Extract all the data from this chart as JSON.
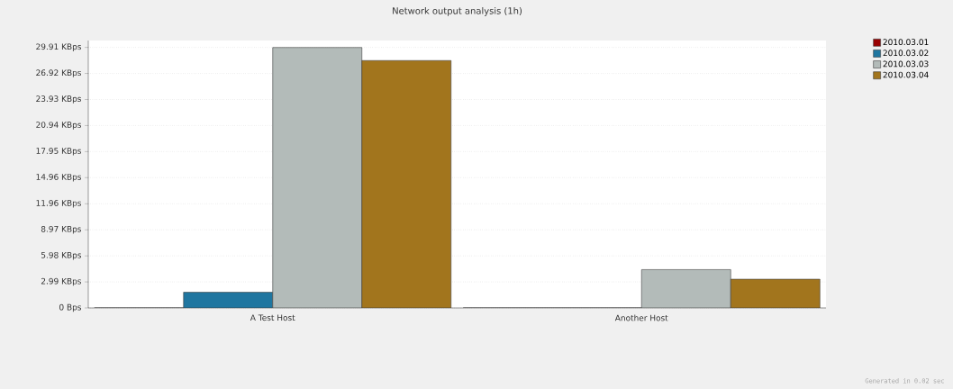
{
  "chart_data": {
    "type": "bar",
    "title": "Network output analysis  (1h)",
    "categories": [
      "A Test Host",
      "Another Host"
    ],
    "series": [
      {
        "name": "2010.03.01",
        "color": "#990000",
        "values": [
          0,
          0
        ]
      },
      {
        "name": "2010.03.02",
        "color": "#1f76a0",
        "values": [
          1.8,
          0
        ]
      },
      {
        "name": "2010.03.03",
        "color": "#b3bbb9",
        "values": [
          29.9,
          4.4
        ]
      },
      {
        "name": "2010.03.04",
        "color": "#a2751d",
        "values": [
          28.4,
          3.3
        ]
      }
    ],
    "ylim": [
      0,
      30.7
    ],
    "yticks": [
      {
        "value": 0,
        "label": "0 Bps"
      },
      {
        "value": 2.99,
        "label": "2.99 KBps"
      },
      {
        "value": 5.98,
        "label": "5.98 KBps"
      },
      {
        "value": 8.97,
        "label": "8.97 KBps"
      },
      {
        "value": 11.96,
        "label": "11.96 KBps"
      },
      {
        "value": 14.96,
        "label": "14.96 KBps"
      },
      {
        "value": 17.95,
        "label": "17.95 KBps"
      },
      {
        "value": 20.94,
        "label": "20.94 KBps"
      },
      {
        "value": 23.93,
        "label": "23.93 KBps"
      },
      {
        "value": 26.92,
        "label": "26.92 KBps"
      },
      {
        "value": 29.91,
        "label": "29.91 KBps"
      }
    ],
    "grid": "y",
    "legend": "top right",
    "annotations": [
      "Generated in 0.02 sec"
    ]
  }
}
